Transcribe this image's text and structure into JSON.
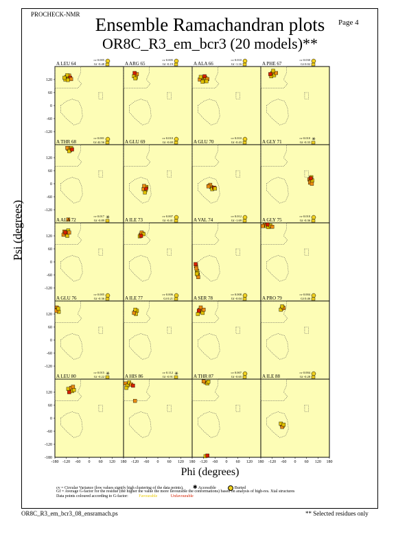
{
  "header": {
    "program": "PROCHECK-NMR",
    "page_label": "Page  4",
    "title": "Ensemble Ramachandran plots",
    "subtitle": "OR8C_R3_em_bcr3 (20 models)**"
  },
  "colors": {
    "panel_bg": "#fdfdb6",
    "point_favourable": "#e0c000",
    "point_mid": "#e88a10",
    "point_unfavourable": "#d42000",
    "point_outline": "#000000",
    "badge_yellow": "#f0d020",
    "region_outline": "#555555"
  },
  "legend": {
    "cv_line": "cv = Circular Variance (low values signify high clustering of the data points).",
    "accessible": "Accessible",
    "buried": "Buried",
    "gf_line": "Gf = Average G-factor for the residue (the higher the value the more favourable the conformations) based on analysis of high-res. Xtal structures",
    "colour_line": "Data points coloured according to G-factor:",
    "favourable": "Favourable",
    "unfavourable": "Unfavourable"
  },
  "footer": {
    "filename": "OR8C_R3_em_bcr3_08_ensramach.ps",
    "note": "** Selected residues only"
  },
  "chart_data": {
    "type": "scatter",
    "xlabel": "Phi (degrees)",
    "ylabel": "Psi (degrees)",
    "xlim": [
      -180,
      180
    ],
    "ylim": [
      -180,
      180
    ],
    "x_ticks": [
      "-180",
      "-120",
      "-60",
      "0",
      "60",
      "120",
      "180"
    ],
    "y_ticks": [
      "120",
      "60",
      "0",
      "-60",
      "-120"
    ],
    "y_ticks_bottom": [
      "-180"
    ],
    "panels": [
      {
        "residue": "A LEU 64",
        "cv": "cv 0.005",
        "gf": "Gf -0.48",
        "access": "buried",
        "points": [
          [
            -120,
            132
          ],
          [
            -110,
            125
          ],
          [
            -125,
            120
          ],
          [
            -105,
            138
          ],
          [
            -115,
            140
          ],
          [
            -100,
            128
          ],
          [
            -95,
            122
          ],
          [
            -130,
            128
          ],
          [
            -112,
            118
          ]
        ]
      },
      {
        "residue": "A ARG 65",
        "cv": "cv 0.005",
        "gf": "Gf -0.19",
        "access": "buried",
        "points": [
          [
            -120,
            140
          ],
          [
            -115,
            130
          ],
          [
            -125,
            135
          ],
          [
            -110,
            145
          ],
          [
            -118,
            125
          ],
          [
            -122,
            150
          ]
        ]
      },
      {
        "residue": "A ALA 66",
        "cv": "cv 0.010",
        "gf": "Gf -1.16",
        "access": "buried",
        "points": [
          [
            -130,
            125
          ],
          [
            -120,
            115
          ],
          [
            -110,
            128
          ],
          [
            -140,
            120
          ],
          [
            -125,
            110
          ],
          [
            -115,
            135
          ],
          [
            -100,
            122
          ],
          [
            -135,
            132
          ],
          [
            -105,
            112
          ]
        ]
      },
      {
        "residue": "A PHE 67",
        "cv": "cv 0.030",
        "gf": "Gf 0.02",
        "access": "buried",
        "points": [
          [
            -120,
            150
          ],
          [
            -110,
            140
          ],
          [
            -125,
            135
          ],
          [
            -100,
            150
          ],
          [
            -115,
            160
          ],
          [
            -130,
            145
          ]
        ]
      },
      {
        "residue": "A THR 68",
        "cv": "cv 0.001",
        "gf": "Gf 42.56",
        "access": "buried",
        "points": [
          [
            -110,
            160
          ],
          [
            -100,
            155
          ],
          [
            -95,
            165
          ],
          [
            -115,
            165
          ],
          [
            -105,
            150
          ],
          [
            -90,
            158
          ],
          [
            -110,
            -165
          ]
        ]
      },
      {
        "residue": "A GLU 69",
        "cv": "cv 0.010",
        "gf": "Gf -0.69",
        "access": "buried",
        "points": [
          [
            -70,
            -20
          ],
          [
            -65,
            -30
          ],
          [
            -60,
            -15
          ],
          [
            -75,
            -25
          ],
          [
            -68,
            -40
          ],
          [
            -62,
            -22
          ],
          [
            -72,
            -10
          ]
        ]
      },
      {
        "residue": "A GLU 70",
        "cv": "cv 0.010",
        "gf": "Gf -0.43",
        "access": "buried",
        "points": [
          [
            -90,
            -10
          ],
          [
            -80,
            -15
          ],
          [
            -70,
            -20
          ],
          [
            -85,
            -5
          ],
          [
            -75,
            -25
          ],
          [
            -65,
            -18
          ],
          [
            -95,
            -12
          ],
          [
            -60,
            -22
          ]
        ]
      },
      {
        "residue": "A GLY 71",
        "cv": "cv 0.010",
        "gf": "Gf -0.33",
        "access": "accessible",
        "points": [
          [
            75,
            20
          ],
          [
            80,
            10
          ],
          [
            85,
            30
          ],
          [
            78,
            5
          ],
          [
            90,
            15
          ],
          [
            82,
            25
          ],
          [
            88,
            0
          ]
        ]
      },
      {
        "residue": "A ALA 72",
        "cv": "cv 0.017",
        "gf": "Gf -0.89",
        "access": "accessible",
        "points": [
          [
            -130,
            140
          ],
          [
            -120,
            130
          ],
          [
            -110,
            145
          ],
          [
            -135,
            125
          ],
          [
            -115,
            120
          ],
          [
            -125,
            135
          ],
          [
            -105,
            135
          ]
        ]
      },
      {
        "residue": "A ILE 73",
        "cv": "cv 0.007",
        "gf": "Gf -0.41",
        "access": "buried",
        "points": [
          [
            -90,
            125
          ],
          [
            -80,
            130
          ],
          [
            -95,
            118
          ],
          [
            -85,
            135
          ],
          [
            -75,
            128
          ],
          [
            -88,
            120
          ]
        ]
      },
      {
        "residue": "A VAL 74",
        "cv": "cv 0.012",
        "gf": "Gf -1.69",
        "access": "buried",
        "points": [
          [
            -160,
            -20
          ],
          [
            -155,
            -40
          ],
          [
            -150,
            -60
          ],
          [
            -158,
            -30
          ],
          [
            -152,
            -50
          ],
          [
            -162,
            -10
          ],
          [
            -148,
            -70
          ],
          [
            -156,
            -55
          ]
        ]
      },
      {
        "residue": "A GLY 75",
        "cv": "cv 0.010",
        "gf": "Gf -0.36",
        "access": "buried",
        "points": [
          [
            -160,
            170
          ],
          [
            -150,
            165
          ],
          [
            -140,
            160
          ],
          [
            -170,
            165
          ],
          [
            -130,
            168
          ],
          [
            -145,
            172
          ],
          [
            -120,
            162
          ]
        ]
      },
      {
        "residue": "A GLU 76",
        "cv": "cv 0.005",
        "gf": "Gf -0.36",
        "access": "buried",
        "points": [
          [
            -170,
            150
          ],
          [
            -165,
            140
          ],
          [
            -160,
            130
          ],
          [
            -172,
            135
          ],
          [
            -162,
            145
          ]
        ]
      },
      {
        "residue": "A ILE 77",
        "cv": "cv 0.006",
        "gf": "Gf 0.21",
        "access": "buried",
        "points": [
          [
            -120,
            130
          ],
          [
            -115,
            120
          ],
          [
            -110,
            135
          ],
          [
            -125,
            125
          ],
          [
            -118,
            140
          ]
        ]
      },
      {
        "residue": "A SER 78",
        "cv": "cv 0.008",
        "gf": "Gf -0.04",
        "access": "buried",
        "points": [
          [
            -140,
            140
          ],
          [
            -130,
            130
          ],
          [
            -150,
            120
          ],
          [
            -135,
            150
          ],
          [
            -125,
            125
          ],
          [
            -145,
            135
          ],
          [
            -120,
            140
          ]
        ]
      },
      {
        "residue": "A PRO 79",
        "cv": "cv 0.004",
        "gf": "Gf 0.46",
        "access": "buried",
        "points": [
          [
            -70,
            145
          ],
          [
            -65,
            150
          ],
          [
            -75,
            140
          ],
          [
            -60,
            148
          ],
          [
            -68,
            155
          ]
        ]
      },
      {
        "residue": "A LEU 80",
        "cv": "cv 0.015",
        "gf": "Gf -0.22",
        "access": "accessible",
        "points": [
          [
            -100,
            130
          ],
          [
            -90,
            125
          ],
          [
            -110,
            135
          ],
          [
            -95,
            140
          ],
          [
            -80,
            130
          ],
          [
            -105,
            120
          ],
          [
            -85,
            145
          ]
        ]
      },
      {
        "residue": "A HIS 86",
        "cv": "cv 0.112",
        "gf": "Gf -0.91",
        "access": "accessible",
        "points": [
          [
            -170,
            160
          ],
          [
            -160,
            150
          ],
          [
            -150,
            165
          ],
          [
            -140,
            155
          ],
          [
            -165,
            140
          ],
          [
            -130,
            150
          ],
          [
            -120,
            80
          ]
        ]
      },
      {
        "residue": "A THR 87",
        "cv": "cv 0.007",
        "gf": "Gf -0.65",
        "access": "buried",
        "points": [
          [
            -110,
            165
          ],
          [
            -100,
            160
          ],
          [
            -95,
            168
          ],
          [
            -120,
            170
          ],
          [
            -110,
            -175
          ],
          [
            -100,
            -172
          ]
        ]
      },
      {
        "residue": "A ILE 88",
        "cv": "cv 0.004",
        "gf": "Gf -0.28",
        "access": "buried",
        "points": [
          [
            -70,
            -30
          ],
          [
            -65,
            -35
          ],
          [
            -75,
            -25
          ],
          [
            -68,
            -40
          ],
          [
            -60,
            -30
          ]
        ]
      }
    ]
  }
}
